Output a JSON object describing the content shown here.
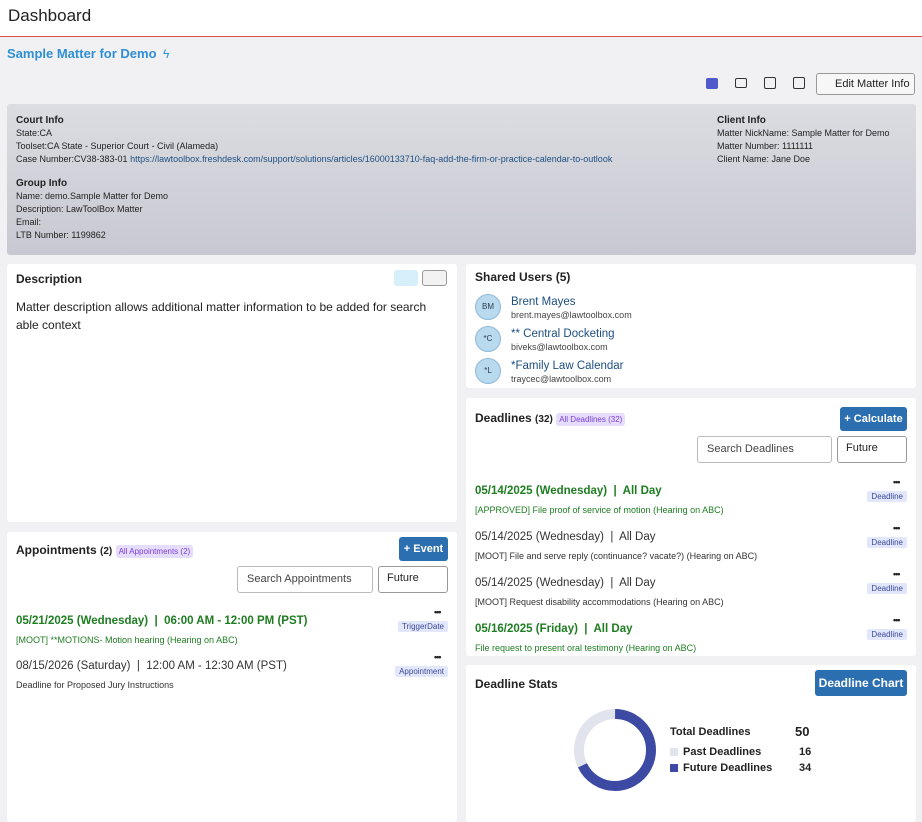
{
  "header": {
    "title": "Dashboard"
  },
  "matter": {
    "title": "Sample Matter for Demo",
    "edit_button": "Edit Matter Info"
  },
  "court_info": {
    "heading": "Court Info",
    "state": "State:CA",
    "toolset": "Toolset:CA State - Superior Court - Civil (Alameda)",
    "case_number": "Case Number:CV38-383-01",
    "case_link": "https://lawtoolbox.freshdesk.com/support/solutions/articles/16000133710-faq-add-the-firm-or-practice-calendar-to-outlook"
  },
  "group_info": {
    "heading": "Group Info",
    "name": "Name: demo.Sample Matter for Demo",
    "description": "Description: LawToolBox Matter",
    "email": "Email:",
    "ltb_number": "LTB Number: 1199862"
  },
  "client_info": {
    "heading": "Client Info",
    "nickname": "Matter NickName: Sample Matter for Demo",
    "number": "Matter Number: 1111111",
    "client_name": "Client Name: Jane Doe"
  },
  "description": {
    "heading": "Description",
    "text": "Matter description allows additional matter information to be added for search able context"
  },
  "shared_users": {
    "heading": "Shared Users (5)",
    "users": [
      {
        "initials": "BM",
        "name": "Brent Mayes",
        "email": "brent.mayes@lawtoolbox.com"
      },
      {
        "initials": "*C",
        "name": "** Central Docketing",
        "email": "biveks@lawtoolbox.com"
      },
      {
        "initials": "*L",
        "name": "*Family Law Calendar",
        "email": "traycec@lawtoolbox.com"
      }
    ]
  },
  "deadlines": {
    "heading": "Deadlines",
    "count": "(32)",
    "badge": "All Deadlines (32)",
    "button": "+ Calculate",
    "search": "Search Deadlines",
    "filter": "Future",
    "items": [
      {
        "when": "05/14/2025 (Wednesday)  |  All Day",
        "text": "[APPROVED] File proof of service of motion (Hearing on ABC)",
        "tag": "Deadline",
        "highlight": true
      },
      {
        "when": "05/14/2025 (Wednesday)  |  All Day",
        "text": "[MOOT] File and serve reply (continuance? vacate?) (Hearing on ABC)",
        "tag": "Deadline",
        "highlight": false
      },
      {
        "when": "05/14/2025 (Wednesday)  |  All Day",
        "text": "[MOOT] Request disability accommodations (Hearing on ABC)",
        "tag": "Deadline",
        "highlight": false
      },
      {
        "when": "05/16/2025 (Friday)  |  All Day",
        "text": "File request to present oral testimony (Hearing on ABC)",
        "tag": "Deadline",
        "highlight": true
      }
    ]
  },
  "appointments": {
    "heading": "Appointments",
    "count": "(2)",
    "badge": "All Appointments (2)",
    "button": "+ Event",
    "search": "Search Appointments",
    "filter": "Future",
    "items": [
      {
        "when": "05/21/2025 (Wednesday)  |  06:00 AM - 12:00 PM (PST)",
        "text": "[MOOT] **MOTIONS- Motion hearing (Hearing on ABC)",
        "tag": "TriggerDate",
        "highlight": true
      },
      {
        "when": "08/15/2026 (Saturday)  |  12:00 AM - 12:30 AM (PST)",
        "text": "Deadline for Proposed Jury Instructions",
        "tag": "Appointment",
        "highlight": false
      }
    ]
  },
  "stats": {
    "heading": "Deadline Stats",
    "button": "Deadline Chart",
    "total_label": "Total Deadlines",
    "total": 50,
    "past_label": "Past Deadlines",
    "past": 16,
    "past_color": "#e1e4ec",
    "future_label": "Future Deadlines",
    "future": 34,
    "future_color": "#3d4aa3"
  }
}
